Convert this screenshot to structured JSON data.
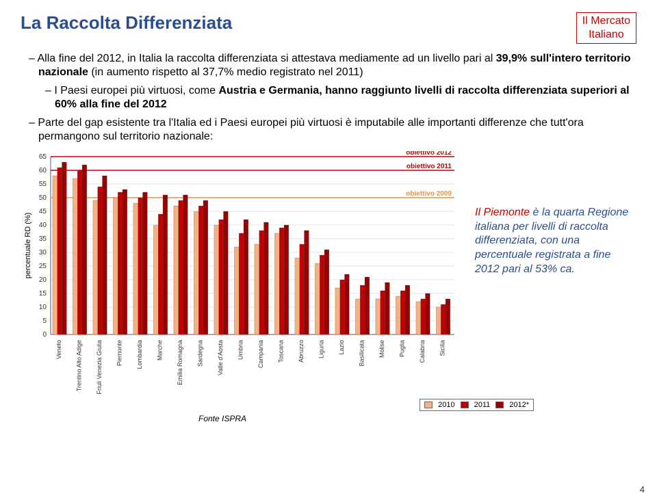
{
  "colors": {
    "title": "#2a4d8f",
    "corner": "#c00000",
    "piedmont": "#c00000",
    "text": "#222222",
    "bar2010": "#f4b183",
    "bar2011": "#c00000",
    "bar2012": "#990000",
    "grid": "#cccccc",
    "obj2012": "#c00000",
    "obj2011": "#c00000",
    "obj2009": "#e89242"
  },
  "title": "La Raccolta Differenziata",
  "corner": {
    "line1": "Il Mercato",
    "line2": "Italiano"
  },
  "paragraphs": {
    "p1_a": "Alla fine del 2012, in Italia la raccolta differenziata si attestava mediamente ad un livello pari al ",
    "p1_b": "39,9% sull'intero territorio nazionale",
    "p1_c": " (in aumento rispetto al 37,7% medio registrato nel 2011)",
    "p2_a": "I Paesi europei più virtuosi, come ",
    "p2_b": "Austria e Germania, hanno raggiunto livelli di raccolta differenziata superiori al 60% alla fine del 2012",
    "p3": "Parte del gap esistente tra l'Italia ed i Paesi europei più virtuosi è imputabile alle importanti differenze che tutt'ora permangono sul territorio nazionale:"
  },
  "sidenote": {
    "a": "Il Piemonte è la quarta Regione italiana per livelli di raccolta differenziata, con una percentuale registrata a fine 2012 pari al 53% ca.",
    "highlight_from": 3,
    "highlight_to": 11
  },
  "chart": {
    "ylabel": "percentuale RD (%)",
    "ylim": [
      0,
      65
    ],
    "ytick_step": 5,
    "obj2012": {
      "y": 65,
      "label": "obiettivo 2012"
    },
    "obj2011": {
      "y": 60,
      "label": "obiettivo 2011"
    },
    "obj2009": {
      "y": 50,
      "label": "obiettivo 2009"
    },
    "regions": [
      {
        "name": "Veneto",
        "v": [
          58,
          61,
          63
        ]
      },
      {
        "name": "Trentino Alto Adige",
        "v": [
          57,
          60,
          62
        ]
      },
      {
        "name": "Friuli Venezia Giulia",
        "v": [
          49,
          54,
          58
        ]
      },
      {
        "name": "Piemonte",
        "v": [
          50,
          52,
          53
        ]
      },
      {
        "name": "Lombardia",
        "v": [
          48,
          50,
          52
        ]
      },
      {
        "name": "Marche",
        "v": [
          40,
          44,
          51
        ]
      },
      {
        "name": "Emilia Romagna",
        "v": [
          47,
          49,
          51
        ]
      },
      {
        "name": "Sardegna",
        "v": [
          45,
          47,
          49
        ]
      },
      {
        "name": "Valle d'Aosta",
        "v": [
          40,
          42,
          45
        ]
      },
      {
        "name": "Umbria",
        "v": [
          32,
          37,
          42
        ]
      },
      {
        "name": "Campania",
        "v": [
          33,
          38,
          41
        ]
      },
      {
        "name": "Toscana",
        "v": [
          37,
          39,
          40
        ]
      },
      {
        "name": "Abruzzo",
        "v": [
          28,
          33,
          38
        ]
      },
      {
        "name": "Liguria",
        "v": [
          26,
          29,
          31
        ]
      },
      {
        "name": "Lazio",
        "v": [
          17,
          20,
          22
        ]
      },
      {
        "name": "Basilicata",
        "v": [
          13,
          18,
          21
        ]
      },
      {
        "name": "Molise",
        "v": [
          13,
          16,
          19
        ]
      },
      {
        "name": "Puglia",
        "v": [
          14,
          16,
          18
        ]
      },
      {
        "name": "Calabria",
        "v": [
          12,
          13,
          15
        ]
      },
      {
        "name": "Sicilia",
        "v": [
          10,
          11,
          13
        ]
      }
    ],
    "legend": [
      "2010",
      "2011",
      "2012*"
    ],
    "source": "Fonte ISPRA"
  },
  "pagenum": "4"
}
